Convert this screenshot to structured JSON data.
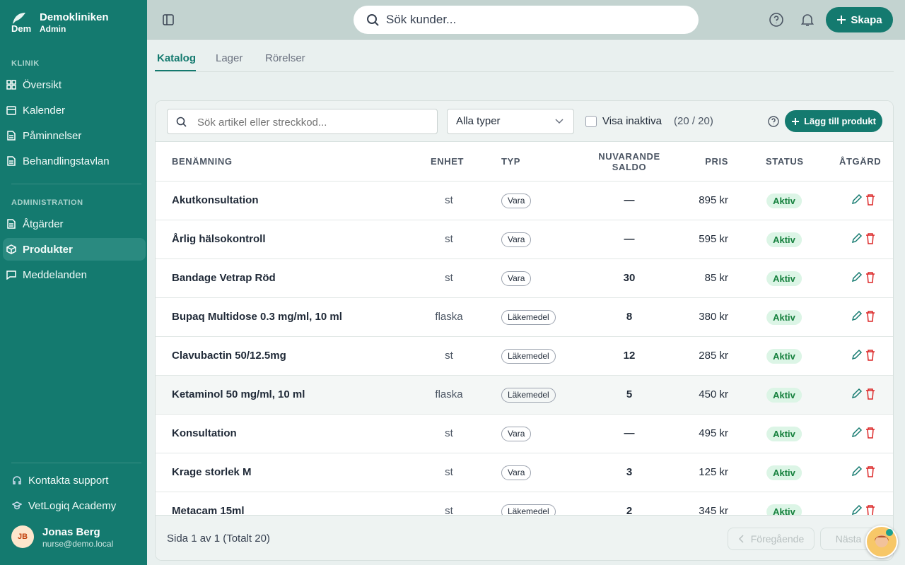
{
  "sidebar": {
    "brand": {
      "logo_text": "Dem",
      "name": "Demokliniken",
      "role": "Admin"
    },
    "sections": [
      {
        "title": "KLINIK",
        "items": [
          "Översikt",
          "Kalender",
          "Påminnelser",
          "Behandlingstavlan"
        ]
      },
      {
        "title": "ADMINISTRATION",
        "items": [
          "Åtgärder",
          "Produkter",
          "Meddelanden"
        ]
      }
    ],
    "footer_links": [
      "Kontakta support",
      "VetLogiq Academy"
    ],
    "user": {
      "initials": "JB",
      "name": "Jonas Berg",
      "email": "nurse@demo.local"
    }
  },
  "topbar": {
    "search_placeholder": "Sök kunder...",
    "create_button": "Skapa"
  },
  "tabs": [
    "Katalog",
    "Lager",
    "Rörelser"
  ],
  "toolbar": {
    "search_placeholder": "Sök artikel eller streckkod...",
    "type_filter": "Alla typer",
    "inactive_label": "Visa inaktiva",
    "count": "(20 / 20)",
    "add_button": "Lägg till produkt"
  },
  "table": {
    "columns": [
      "BENÄMNING",
      "ENHET",
      "TYP",
      "NUVARANDE SALDO",
      "PRIS",
      "STATUS",
      "ÅTGÄRD"
    ],
    "rows": [
      [
        "Akutkonsultation",
        "st",
        "Vara",
        "—",
        "895 kr",
        "Aktiv"
      ],
      [
        "Årlig hälsokontroll",
        "st",
        "Vara",
        "—",
        "595 kr",
        "Aktiv"
      ],
      [
        "Bandage Vetrap Röd",
        "st",
        "Vara",
        30,
        "85 kr",
        "Aktiv"
      ],
      [
        "Bupaq Multidose 0.3 mg/ml, 10 ml",
        "flaska",
        "Läkemedel",
        8,
        "380 kr",
        "Aktiv"
      ],
      [
        "Clavubactin 50/12.5mg",
        "st",
        "Läkemedel",
        12,
        "285 kr",
        "Aktiv"
      ],
      [
        "Ketaminol 50 mg/ml, 10 ml",
        "flaska",
        "Läkemedel",
        5,
        "450 kr",
        "Aktiv"
      ],
      [
        "Konsultation",
        "st",
        "Vara",
        "—",
        "495 kr",
        "Aktiv"
      ],
      [
        "Krage storlek M",
        "st",
        "Vara",
        3,
        "125 kr",
        "Aktiv"
      ],
      [
        "Metacam 15ml",
        "st",
        "Läkemedel",
        2,
        "345 kr",
        "Aktiv"
      ]
    ]
  },
  "pagination": {
    "summary": "Sida 1 av 1 (Totalt 20)",
    "previous": "Föregående",
    "next": "Nästa"
  }
}
